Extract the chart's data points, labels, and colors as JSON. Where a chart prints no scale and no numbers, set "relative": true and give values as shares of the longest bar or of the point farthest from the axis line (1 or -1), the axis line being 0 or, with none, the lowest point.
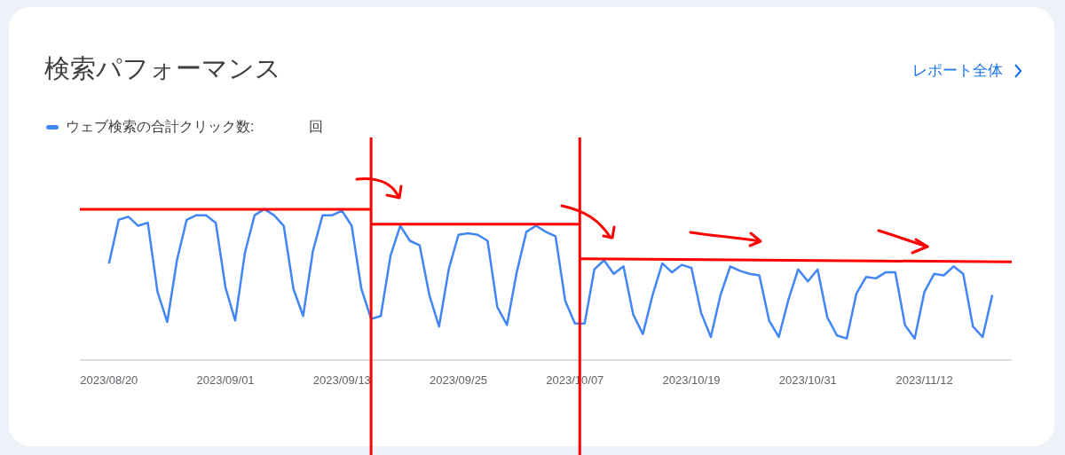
{
  "chart_data": {
    "type": "line",
    "title": "検索パフォーマンス",
    "legend": "top left",
    "relative": true,
    "marker": "none",
    "tick_labels": "x",
    "annotations": [
      "レポート全体",
      "回"
    ],
    "x": [
      "2023-08-20",
      "2023-08-21",
      "2023-08-22",
      "2023-08-23",
      "2023-08-24",
      "2023-08-25",
      "2023-08-26",
      "2023-08-27",
      "2023-08-28",
      "2023-08-29",
      "2023-08-30",
      "2023-08-31",
      "2023-09-01",
      "2023-09-02",
      "2023-09-03",
      "2023-09-04",
      "2023-09-05",
      "2023-09-06",
      "2023-09-07",
      "2023-09-08",
      "2023-09-09",
      "2023-09-10",
      "2023-09-11",
      "2023-09-12",
      "2023-09-13",
      "2023-09-14",
      "2023-09-15",
      "2023-09-16",
      "2023-09-17",
      "2023-09-18",
      "2023-09-19",
      "2023-09-20",
      "2023-09-21",
      "2023-09-22",
      "2023-09-23",
      "2023-09-24",
      "2023-09-25",
      "2023-09-26",
      "2023-09-27",
      "2023-09-28",
      "2023-09-29",
      "2023-09-30",
      "2023-10-01",
      "2023-10-02",
      "2023-10-03",
      "2023-10-04",
      "2023-10-05",
      "2023-10-06",
      "2023-10-07",
      "2023-10-08",
      "2023-10-09",
      "2023-10-10",
      "2023-10-11",
      "2023-10-12",
      "2023-10-13",
      "2023-10-14",
      "2023-10-15",
      "2023-10-16",
      "2023-10-17",
      "2023-10-18",
      "2023-10-19",
      "2023-10-20",
      "2023-10-21",
      "2023-10-22",
      "2023-10-23",
      "2023-10-24",
      "2023-10-25",
      "2023-10-26",
      "2023-10-27",
      "2023-10-28",
      "2023-10-29",
      "2023-10-30",
      "2023-10-31",
      "2023-11-01",
      "2023-11-02",
      "2023-11-03",
      "2023-11-04",
      "2023-11-05",
      "2023-11-06",
      "2023-11-07",
      "2023-11-08",
      "2023-11-09",
      "2023-11-10",
      "2023-11-11",
      "2023-11-12",
      "2023-11-13",
      "2023-11-14",
      "2023-11-15",
      "2023-11-16",
      "2023-11-17",
      "2023-11-18",
      "2023-11-19"
    ],
    "xlim": [
      "2023-08-17",
      "2023-11-21"
    ],
    "xticks": [
      {
        "value": "2023-08-20",
        "label": "2023/08/20"
      },
      {
        "value": "2023-09-01",
        "label": "2023/09/01"
      },
      {
        "value": "2023-09-13",
        "label": "2023/09/13"
      },
      {
        "value": "2023-09-25",
        "label": "2023/09/25"
      },
      {
        "value": "2023-10-07",
        "label": "2023/10/07"
      },
      {
        "value": "2023-10-19",
        "label": "2023/10/19"
      },
      {
        "value": "2023-10-31",
        "label": "2023/10/31"
      },
      {
        "value": "2023-11-12",
        "label": "2023/11/12"
      }
    ],
    "ref_lines": [
      {
        "axis": "x",
        "value": "2023-09-16",
        "color": "#ff0000"
      },
      {
        "axis": "x",
        "value": "2023-10-07T12:00",
        "color": "#ff0000"
      }
    ],
    "series": [
      {
        "name": "ウェブ検索の合計クリック数:",
        "color": "#4285f4",
        "values": [
          0.64,
          0.93,
          0.95,
          0.89,
          0.91,
          0.45,
          0.25,
          0.66,
          0.93,
          0.96,
          0.96,
          0.91,
          0.48,
          0.26,
          0.71,
          0.96,
          1.0,
          0.96,
          0.89,
          0.47,
          0.29,
          0.72,
          0.96,
          0.96,
          0.99,
          0.89,
          0.47,
          0.27,
          0.29,
          0.69,
          0.89,
          0.79,
          0.76,
          0.43,
          0.22,
          0.6,
          0.83,
          0.84,
          0.83,
          0.79,
          0.35,
          0.23,
          0.58,
          0.85,
          0.89,
          0.85,
          0.82,
          0.39,
          0.24,
          0.24,
          0.6,
          0.66,
          0.57,
          0.62,
          0.3,
          0.17,
          0.43,
          0.64,
          0.58,
          0.63,
          0.61,
          0.31,
          0.15,
          0.43,
          0.62,
          0.59,
          0.57,
          0.56,
          0.26,
          0.15,
          0.4,
          0.6,
          0.52,
          0.6,
          0.28,
          0.16,
          0.14,
          0.44,
          0.55,
          0.54,
          0.58,
          0.58,
          0.23,
          0.14,
          0.45,
          0.57,
          0.56,
          0.62,
          0.57,
          0.22,
          0.15,
          0.43
        ]
      },
      {
        "type": "line",
        "color": "#ff0000",
        "x": [
          "2023-08-17",
          "2023-09-16"
        ],
        "values": [
          1.0,
          1.0
        ]
      },
      {
        "type": "line",
        "color": "#ff0000",
        "x": [
          "2023-09-16",
          "2023-10-07T12:00"
        ],
        "values": [
          0.9,
          0.9
        ]
      },
      {
        "type": "line",
        "color": "#ff0000",
        "x": [
          "2023-10-07T12:00",
          "2023-11-21"
        ],
        "values": [
          0.67,
          0.65
        ]
      }
    ]
  }
}
